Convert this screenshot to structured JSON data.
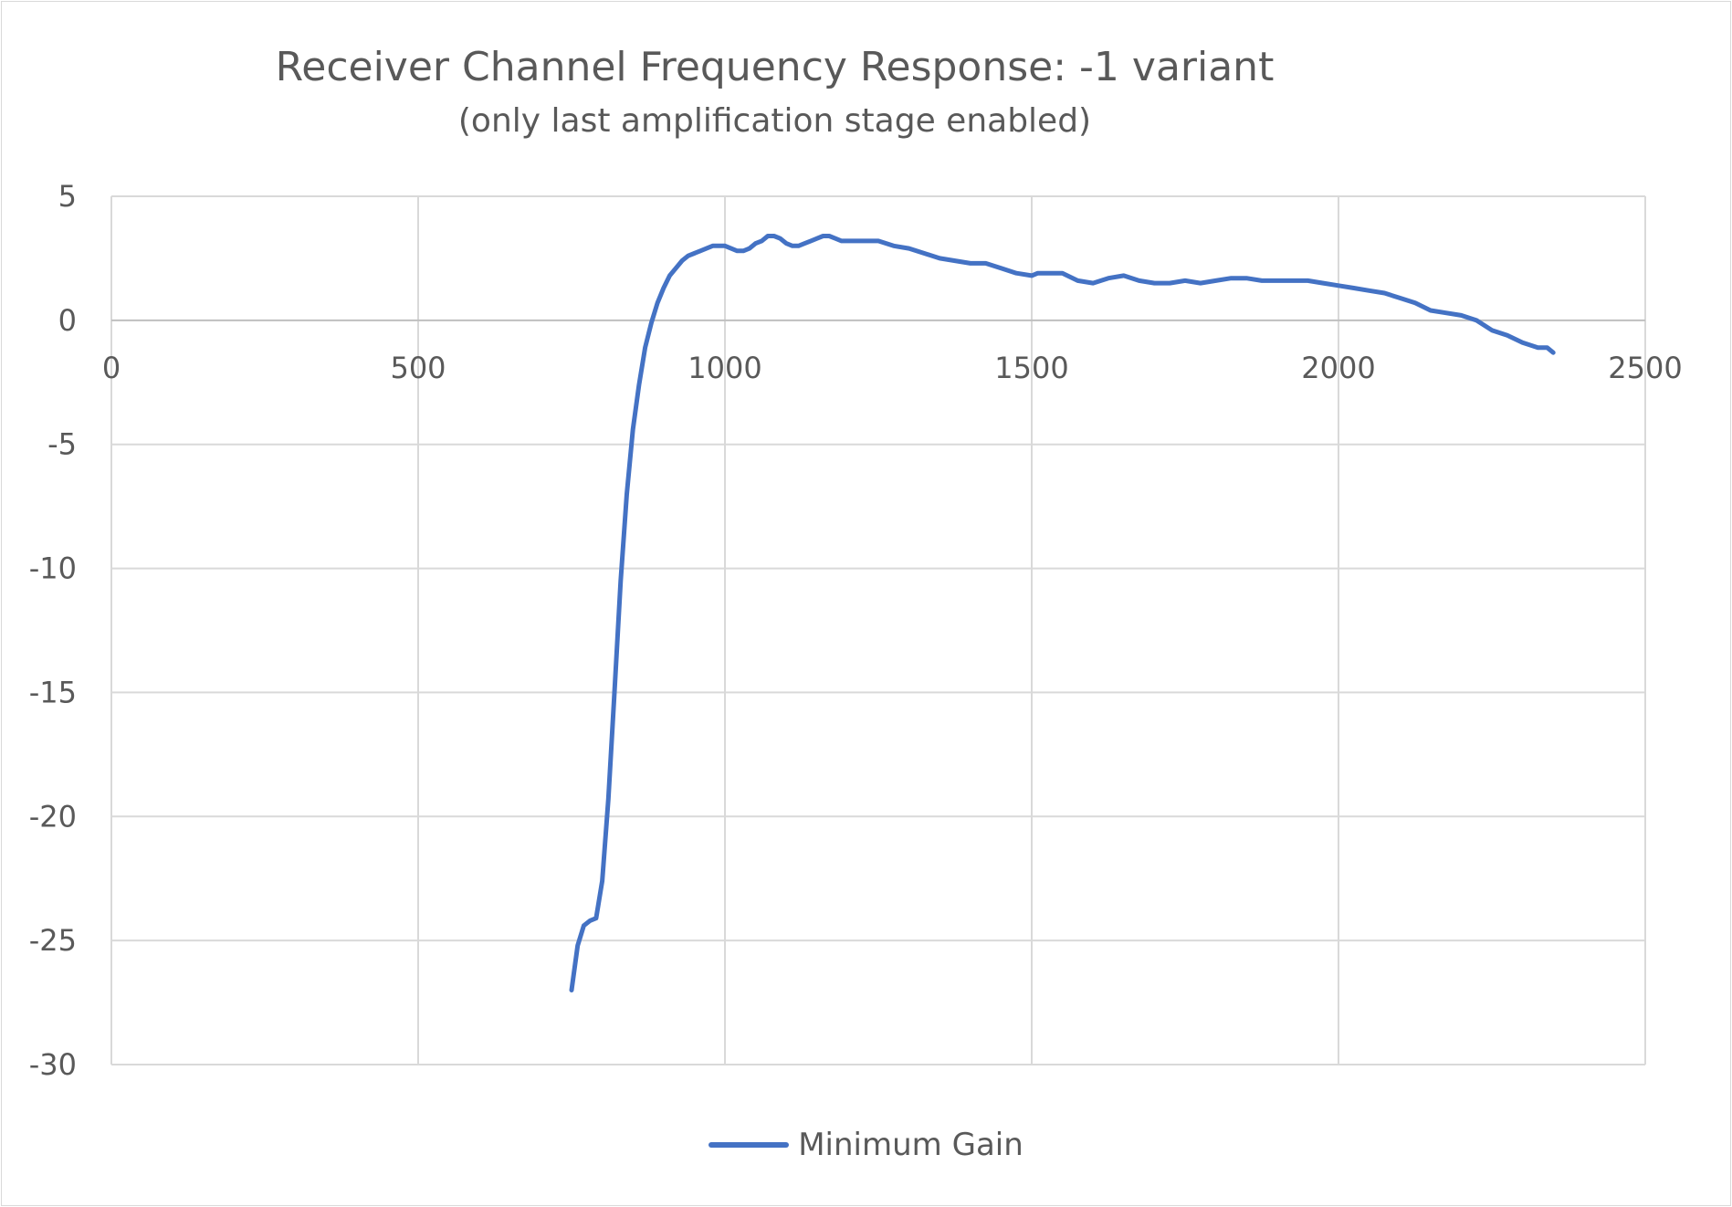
{
  "chart_data": {
    "type": "line",
    "title": "Receiver Channel Frequency Response:  -1 variant",
    "subtitle": "(only last amplification stage enabled)",
    "xlabel": "",
    "ylabel": "",
    "xlim": [
      0,
      2500
    ],
    "ylim": [
      -30,
      5
    ],
    "xticks": [
      "0",
      "500",
      "1000",
      "1500",
      "2000",
      "2500"
    ],
    "yticks": [
      "5",
      "0",
      "-5",
      "-10",
      "-15",
      "-20",
      "-25",
      "-30"
    ],
    "grid": true,
    "legend_position": "bottom",
    "series": [
      {
        "name": "Minimum Gain",
        "color": "#4472c4",
        "x": [
          750,
          760,
          770,
          780,
          790,
          800,
          810,
          820,
          830,
          840,
          850,
          860,
          870,
          880,
          890,
          900,
          910,
          920,
          930,
          940,
          950,
          960,
          970,
          980,
          990,
          1000,
          1010,
          1020,
          1030,
          1040,
          1050,
          1060,
          1070,
          1080,
          1090,
          1100,
          1110,
          1120,
          1130,
          1140,
          1150,
          1160,
          1170,
          1180,
          1190,
          1200,
          1225,
          1250,
          1275,
          1300,
          1325,
          1350,
          1375,
          1400,
          1425,
          1450,
          1475,
          1500,
          1510,
          1525,
          1550,
          1575,
          1600,
          1625,
          1650,
          1675,
          1700,
          1725,
          1750,
          1775,
          1800,
          1825,
          1850,
          1875,
          1900,
          1925,
          1950,
          1975,
          2000,
          2025,
          2050,
          2075,
          2100,
          2125,
          2150,
          2175,
          2200,
          2225,
          2250,
          2275,
          2300,
          2325,
          2340,
          2350
        ],
        "y": [
          -27.0,
          -25.2,
          -24.4,
          -24.2,
          -24.1,
          -22.6,
          -19.3,
          -15.0,
          -10.5,
          -7.0,
          -4.4,
          -2.6,
          -1.1,
          -0.1,
          0.7,
          1.3,
          1.8,
          2.1,
          2.4,
          2.6,
          2.7,
          2.8,
          2.9,
          3.0,
          3.0,
          3.0,
          2.9,
          2.8,
          2.8,
          2.9,
          3.1,
          3.2,
          3.4,
          3.4,
          3.3,
          3.1,
          3.0,
          3.0,
          3.1,
          3.2,
          3.3,
          3.4,
          3.4,
          3.3,
          3.2,
          3.2,
          3.2,
          3.2,
          3.0,
          2.9,
          2.7,
          2.5,
          2.4,
          2.3,
          2.3,
          2.1,
          1.9,
          1.8,
          1.9,
          1.9,
          1.9,
          1.6,
          1.5,
          1.7,
          1.8,
          1.6,
          1.5,
          1.5,
          1.6,
          1.5,
          1.6,
          1.7,
          1.7,
          1.6,
          1.6,
          1.6,
          1.6,
          1.5,
          1.4,
          1.3,
          1.2,
          1.1,
          0.9,
          0.7,
          0.4,
          0.3,
          0.2,
          0.0,
          -0.4,
          -0.6,
          -0.9,
          -1.1,
          -1.1,
          -1.3
        ]
      }
    ]
  }
}
